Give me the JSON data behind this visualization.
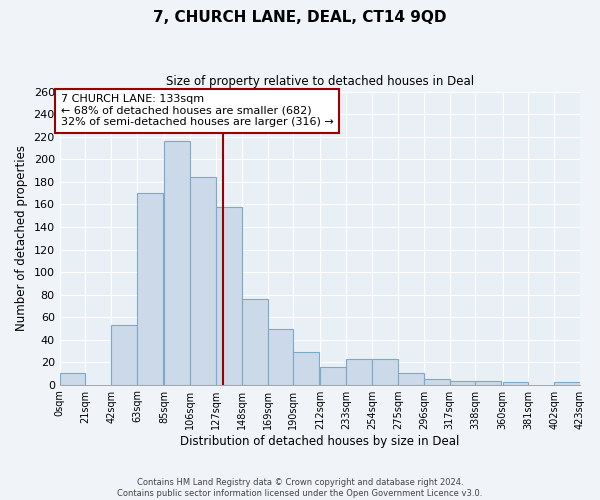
{
  "title": "7, CHURCH LANE, DEAL, CT14 9QD",
  "subtitle": "Size of property relative to detached houses in Deal",
  "xlabel": "Distribution of detached houses by size in Deal",
  "ylabel": "Number of detached properties",
  "bar_values": [
    10,
    0,
    53,
    170,
    216,
    184,
    158,
    76,
    49,
    29,
    16,
    23,
    23,
    10,
    5,
    3,
    3,
    2,
    0,
    2
  ],
  "bin_labels": [
    "0sqm",
    "21sqm",
    "42sqm",
    "63sqm",
    "85sqm",
    "106sqm",
    "127sqm",
    "148sqm",
    "169sqm",
    "190sqm",
    "212sqm",
    "233sqm",
    "254sqm",
    "275sqm",
    "296sqm",
    "317sqm",
    "338sqm",
    "360sqm",
    "381sqm",
    "402sqm",
    "423sqm"
  ],
  "bar_left_edges": [
    0,
    21,
    42,
    63,
    85,
    106,
    127,
    148,
    169,
    190,
    212,
    233,
    254,
    275,
    296,
    317,
    338,
    360,
    381,
    402
  ],
  "bin_width": 21,
  "bar_color": "#ccd9e8",
  "bar_edgecolor": "#7aaac8",
  "property_line_x": 133,
  "property_line_color": "#990000",
  "annotation_title": "7 CHURCH LANE: 133sqm",
  "annotation_line1": "← 68% of detached houses are smaller (682)",
  "annotation_line2": "32% of semi-detached houses are larger (316) →",
  "annotation_box_color": "#ffffff",
  "annotation_box_edgecolor": "#990000",
  "ylim": [
    0,
    260
  ],
  "yticks": [
    0,
    20,
    40,
    60,
    80,
    100,
    120,
    140,
    160,
    180,
    200,
    220,
    240,
    260
  ],
  "footer_line1": "Contains HM Land Registry data © Crown copyright and database right 2024.",
  "footer_line2": "Contains public sector information licensed under the Open Government Licence v3.0.",
  "bg_color": "#f0f4f8",
  "grid_color": "#ffffff",
  "plot_bg_color": "#e8eff5"
}
